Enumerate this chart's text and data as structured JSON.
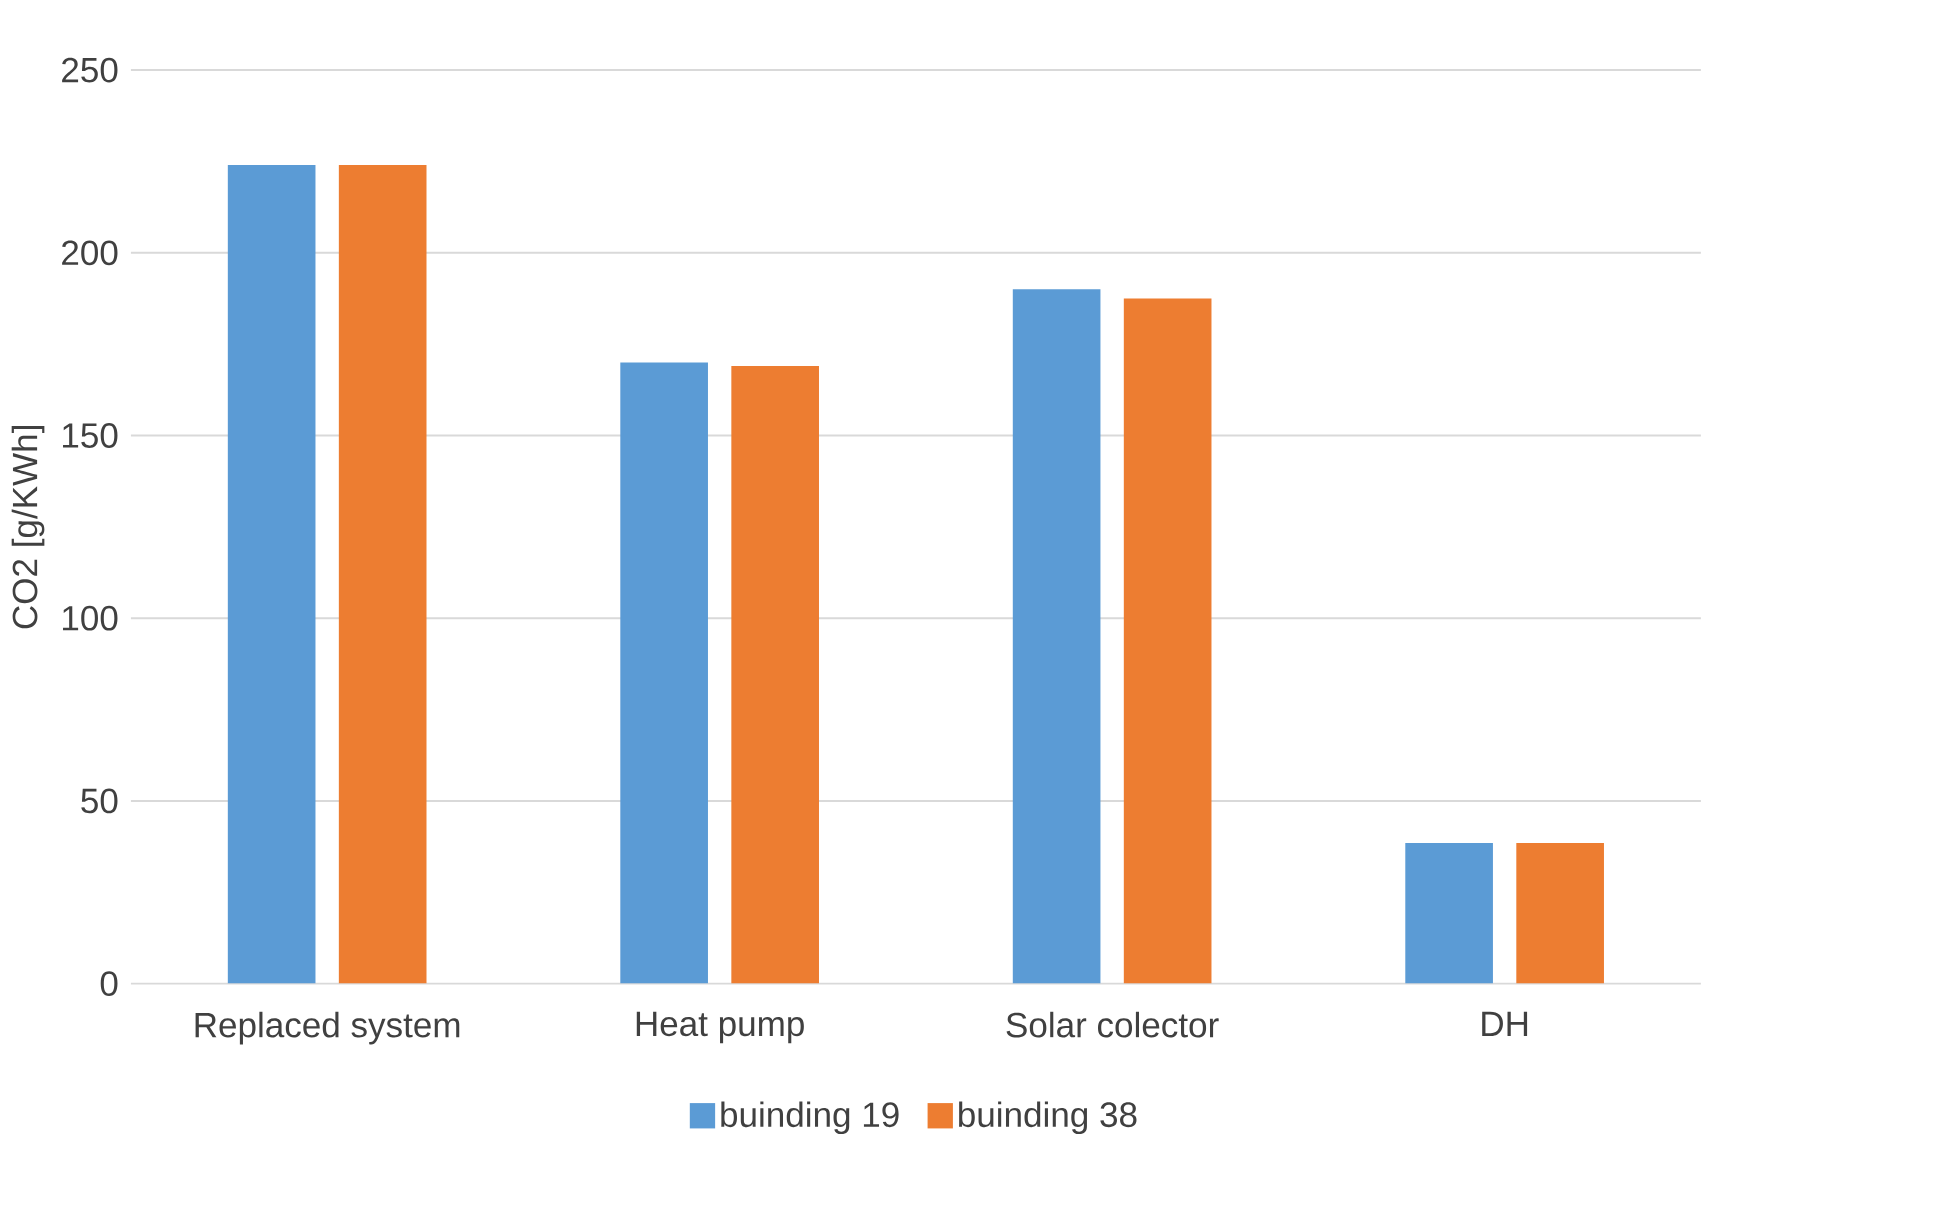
{
  "chart_data": {
    "type": "bar",
    "ylabel": "CO2 [g/KWh]",
    "categories": [
      "Replaced system",
      "Heat pump",
      "Solar colector",
      "DH"
    ],
    "series": [
      {
        "name": "buinding 19",
        "color": "#5b9bd5",
        "values": [
          224,
          170,
          190,
          38.5
        ]
      },
      {
        "name": "buinding 38",
        "color": "#ed7d31",
        "values": [
          224,
          169,
          187.5,
          38.5
        ]
      }
    ],
    "ylim": [
      0,
      250
    ],
    "yticks": [
      0,
      50,
      100,
      150,
      200,
      250
    ],
    "grid": "y",
    "legend": "bottom"
  }
}
